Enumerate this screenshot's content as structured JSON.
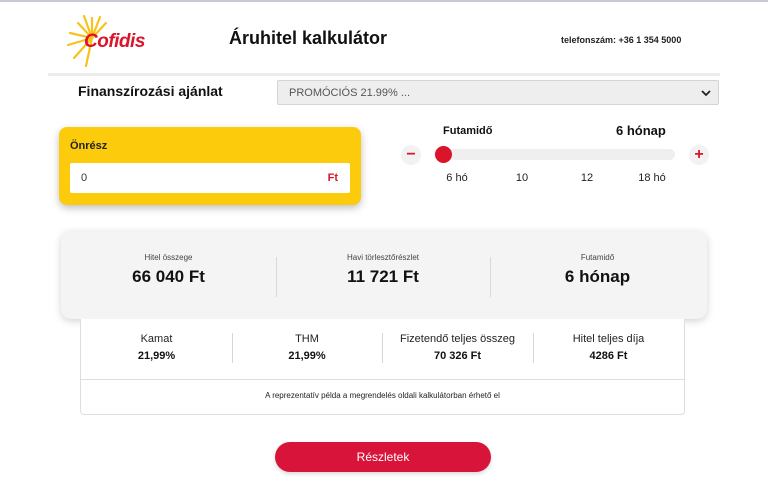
{
  "header": {
    "logo_text": "Cofidis",
    "title": "Áruhitel kalkulátor",
    "phone": "telefonszám: +36 1 354 5000"
  },
  "offer": {
    "label": "Finanszírozási ajánlat",
    "selected": "PROMÓCIÓS 21.99% ..."
  },
  "onresz": {
    "label": "Önrész",
    "value": "0",
    "unit": "Ft"
  },
  "term": {
    "label": "Futamidő",
    "value": "6 hónap",
    "minus": "−",
    "plus": "+",
    "ticks": [
      "6 hó",
      "10",
      "12",
      "18 hó"
    ],
    "slider_fraction": 0.0
  },
  "summary": [
    {
      "label": "Hitel összege",
      "value": "66 040 Ft"
    },
    {
      "label": "Havi törlesztőrészlet",
      "value": "11 721 Ft"
    },
    {
      "label": "Futamidő",
      "value": "6 hónap"
    }
  ],
  "details": [
    {
      "label": "Kamat",
      "value": "21,99%"
    },
    {
      "label": "THM",
      "value": "21,99%"
    },
    {
      "label": "Fizetendő teljes összeg",
      "value": "70 326 Ft"
    },
    {
      "label": "Hitel teljes díja",
      "value": "4286 Ft"
    }
  ],
  "note": "A reprezentatív példa a megrendelés oldali kalkulátorban érhető el",
  "button_label": "Részletek",
  "colors": {
    "brand_red": "#d9142b",
    "card_yellow": "#fccb0c",
    "logo_yellow": "#f8c21a"
  }
}
